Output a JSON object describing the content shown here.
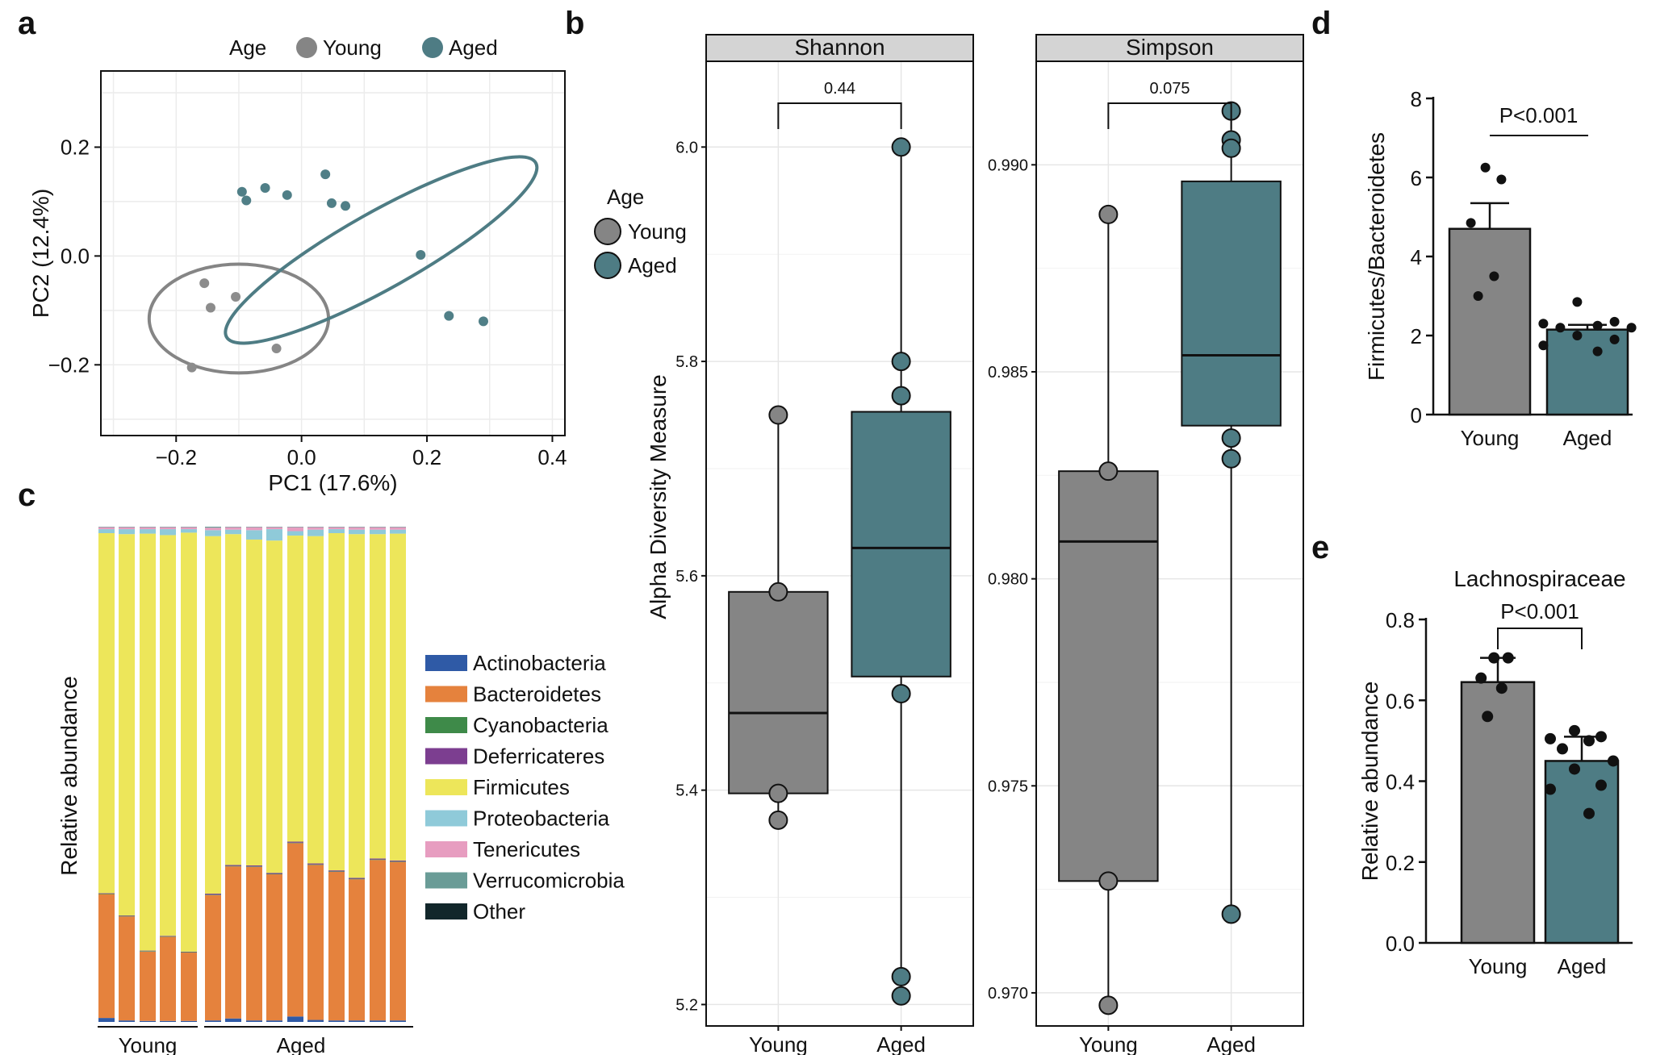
{
  "panels": {
    "a": "a",
    "b": "b",
    "c": "c",
    "d": "d",
    "e": "e"
  },
  "colors": {
    "young": "#858585",
    "aged": "#4e7c84",
    "young_point": "#8c8c8c",
    "aged_point": "#507f87"
  },
  "chart_data": [
    {
      "id": "a",
      "type": "scatter",
      "title": "",
      "xlabel": "PC1  (17.6%)",
      "ylabel": "PC2  (12.4%)",
      "xlim": [
        -0.32,
        0.42
      ],
      "ylim": [
        -0.33,
        0.34
      ],
      "x_ticks": [
        -0.2,
        0.0,
        0.2,
        0.4
      ],
      "x_tick_labels": [
        "−0.2",
        "0.0",
        "0.2",
        "0.4"
      ],
      "y_ticks": [
        -0.2,
        0.0,
        0.2
      ],
      "y_tick_labels": [
        "−0.2",
        "0.0",
        "0.2"
      ],
      "grid": true,
      "legend": {
        "title": "Age",
        "placement": "top",
        "entries": [
          "Young",
          "Aged"
        ]
      },
      "series": [
        {
          "name": "Young",
          "points": [
            [
              -0.175,
              -0.205
            ],
            [
              -0.155,
              -0.05
            ],
            [
              -0.145,
              -0.095
            ],
            [
              -0.105,
              -0.075
            ],
            [
              -0.04,
              -0.17
            ]
          ],
          "ellipse": {
            "cx": -0.1,
            "cy": -0.115,
            "rx": 0.143,
            "ry": 0.1,
            "angle": 0
          }
        },
        {
          "name": "Aged",
          "points": [
            [
              -0.095,
              0.118
            ],
            [
              -0.088,
              0.102
            ],
            [
              -0.058,
              0.125
            ],
            [
              -0.023,
              0.112
            ],
            [
              0.038,
              0.15
            ],
            [
              0.048,
              0.097
            ],
            [
              0.07,
              0.092
            ],
            [
              0.19,
              0.002
            ],
            [
              0.235,
              -0.11
            ],
            [
              0.29,
              -0.12
            ]
          ],
          "ellipse": {
            "cx": 0.127,
            "cy": 0.011,
            "rx": 0.283,
            "ry": 0.07,
            "angle": 29.4
          }
        }
      ]
    },
    {
      "id": "b",
      "type": "box",
      "title": "",
      "ylabel": "Alpha Diversity Measure",
      "legend": {
        "title": "Age",
        "placement": "left",
        "entries": [
          "Young",
          "Aged"
        ]
      },
      "facets": [
        {
          "strip": "Shannon",
          "categories": [
            "Young",
            "Aged"
          ],
          "ylim": [
            5.18,
            6.08
          ],
          "y_ticks": [
            5.2,
            5.4,
            5.6,
            5.8,
            6.0
          ],
          "y_tick_labels": [
            "5.2",
            "5.4",
            "5.6",
            "5.8",
            "6.0"
          ],
          "p_value": "0.44",
          "boxes": [
            {
              "name": "Young",
              "min": 5.372,
              "q1": 5.397,
              "median": 5.472,
              "q3": 5.585,
              "max": 5.75,
              "points": [
                5.75,
                5.585,
                5.397,
                5.372
              ]
            },
            {
              "name": "Aged",
              "min": 5.208,
              "q1": 5.506,
              "median": 5.626,
              "q3": 5.753,
              "max": 6.0,
              "points": [
                6.0,
                5.8,
                5.768,
                5.49,
                5.226,
                5.208
              ]
            }
          ]
        },
        {
          "strip": "Simpson",
          "categories": [
            "Young",
            "Aged"
          ],
          "ylim": [
            0.9692,
            0.9925
          ],
          "y_ticks": [
            0.97,
            0.975,
            0.98,
            0.985,
            0.99
          ],
          "y_tick_labels": [
            "0.970",
            "0.975",
            "0.980",
            "0.985",
            "0.990"
          ],
          "p_value": "0.075",
          "boxes": [
            {
              "name": "Young",
              "min": 0.9697,
              "q1": 0.9727,
              "median": 0.9809,
              "q3": 0.9826,
              "max": 0.9888,
              "points": [
                0.9888,
                0.9826,
                0.9727,
                0.9697
              ]
            },
            {
              "name": "Aged",
              "min": 0.9719,
              "q1": 0.9837,
              "median": 0.9854,
              "q3": 0.9896,
              "max": 0.9913,
              "points": [
                0.9913,
                0.9906,
                0.9904,
                0.9834,
                0.9829,
                0.9719
              ]
            }
          ]
        }
      ]
    },
    {
      "id": "c",
      "type": "bar",
      "stacked": true,
      "ylabel": "Relative abundance",
      "group_labels": [
        "Young",
        "Aged"
      ],
      "groups": [
        5,
        10
      ],
      "legend": {
        "placement": "right"
      },
      "series": [
        {
          "name": "Actinobacteria",
          "color": "#2f5aa6",
          "values": [
            0.008,
            0.003,
            0.002,
            0.002,
            0.002,
            0.003,
            0.007,
            0.003,
            0.003,
            0.011,
            0.004,
            0.003,
            0.003,
            0.003,
            0.003
          ]
        },
        {
          "name": "Bacteroidetes",
          "color": "#e5823d",
          "values": [
            0.25,
            0.21,
            0.14,
            0.17,
            0.138,
            0.253,
            0.307,
            0.31,
            0.295,
            0.35,
            0.313,
            0.3,
            0.285,
            0.324,
            0.32
          ]
        },
        {
          "name": "Cyanobacteria",
          "color": "#3e8a49",
          "values": [
            0.001,
            0.001,
            0.001,
            0.001,
            0.001,
            0.001,
            0.001,
            0.001,
            0.001,
            0.001,
            0.001,
            0.001,
            0.001,
            0.001,
            0.001
          ]
        },
        {
          "name": "Deferricateres",
          "color": "#7c3e90",
          "values": [
            0.001,
            0.001,
            0.001,
            0.001,
            0.001,
            0.002,
            0.002,
            0.002,
            0.002,
            0.002,
            0.002,
            0.002,
            0.002,
            0.002,
            0.002
          ]
        },
        {
          "name": "Firmicutes",
          "color": "#ede65a",
          "values": [
            0.727,
            0.77,
            0.842,
            0.809,
            0.846,
            0.722,
            0.668,
            0.658,
            0.671,
            0.618,
            0.661,
            0.681,
            0.694,
            0.655,
            0.66
          ]
        },
        {
          "name": "Proteobacteria",
          "color": "#8fcad9",
          "values": [
            0.008,
            0.01,
            0.009,
            0.012,
            0.007,
            0.012,
            0.009,
            0.019,
            0.023,
            0.009,
            0.013,
            0.008,
            0.009,
            0.009,
            0.008
          ]
        },
        {
          "name": "Tenericutes",
          "color": "#e79dc0",
          "values": [
            0.004,
            0.004,
            0.004,
            0.004,
            0.004,
            0.005,
            0.005,
            0.006,
            0.004,
            0.008,
            0.005,
            0.004,
            0.005,
            0.005,
            0.005
          ]
        },
        {
          "name": "Verrucomicrobia",
          "color": "#6a9c97",
          "values": [
            0.001,
            0.001,
            0.001,
            0.001,
            0.001,
            0.002,
            0.001,
            0.001,
            0.001,
            0.001,
            0.001,
            0.001,
            0.001,
            0.001,
            0.001
          ]
        },
        {
          "name": "Other",
          "color": "#12272b",
          "values": [
            0.0,
            0.0,
            0.0,
            0.0,
            0.0,
            0.0,
            0.0,
            0.0,
            0.0,
            0.0,
            0.0,
            0.0,
            0.0,
            0.0,
            0.0
          ]
        }
      ]
    },
    {
      "id": "d",
      "type": "bar",
      "ylabel": "Firmicutes/Bacteroidetes",
      "categories": [
        "Young",
        "Aged"
      ],
      "values": [
        4.7,
        2.15
      ],
      "errors": [
        0.65,
        0.12
      ],
      "ylim": [
        0,
        8
      ],
      "y_ticks": [
        0,
        2,
        4,
        6,
        8
      ],
      "y_tick_labels": [
        "0",
        "2",
        "4",
        "6",
        "8"
      ],
      "p_value": "P<0.001",
      "points": [
        [
          6.25,
          5.95,
          4.85,
          3.5,
          3.0
        ],
        [
          2.85,
          2.35,
          2.3,
          2.25,
          2.2,
          2.2,
          2.0,
          1.9,
          1.75,
          1.6
        ]
      ]
    },
    {
      "id": "e",
      "type": "bar",
      "title": "Lachnospiraceae",
      "ylabel": "Relative abundance",
      "categories": [
        "Young",
        "Aged"
      ],
      "values": [
        0.645,
        0.45
      ],
      "errors": [
        0.06,
        0.06
      ],
      "ylim": [
        0,
        0.8
      ],
      "y_ticks": [
        0,
        0.2,
        0.4,
        0.6,
        0.8
      ],
      "y_tick_labels": [
        "0.0",
        "0.2",
        "0.4",
        "0.6",
        "0.8"
      ],
      "p_value": "P<0.001",
      "points": [
        [
          0.705,
          0.705,
          0.655,
          0.63,
          0.56
        ],
        [
          0.525,
          0.51,
          0.505,
          0.5,
          0.48,
          0.45,
          0.43,
          0.39,
          0.38,
          0.32
        ]
      ]
    }
  ]
}
